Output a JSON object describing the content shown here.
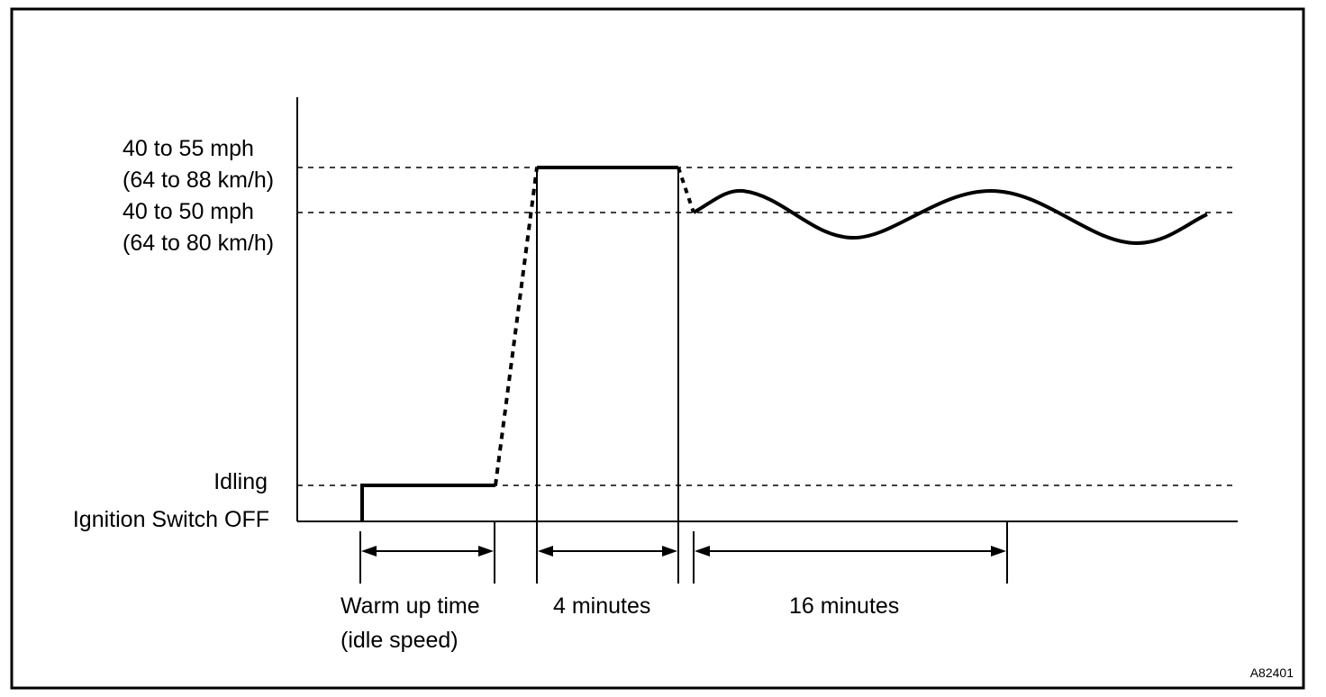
{
  "y_levels": {
    "speed_high": {
      "line1": "40 to 55 mph",
      "line2": "(64 to 88 km/h)"
    },
    "speed_low": {
      "line1": "40 to 50 mph",
      "line2": "(64 to 80 km/h)"
    },
    "idling": "Idling",
    "ignition_off": "Ignition Switch OFF"
  },
  "intervals": {
    "warm_up": {
      "line1": "Warm up time",
      "line2": "(idle speed)"
    },
    "four_minutes": "4 minutes",
    "sixteen_minutes": "16 minutes"
  },
  "figure_id": "A82401",
  "colors": {
    "ink": "#000000",
    "paper": "#ffffff"
  }
}
